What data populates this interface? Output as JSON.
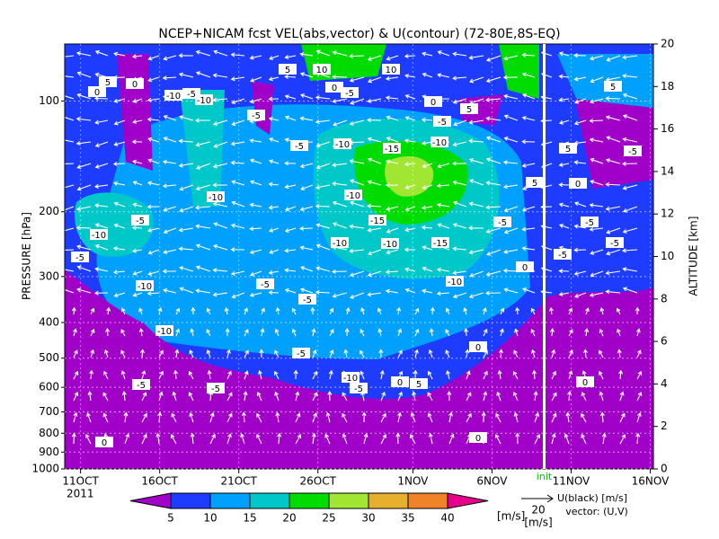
{
  "chart_data": {
    "type": "contour",
    "title": "NCEP+NICAM fcst VEL(abs,vector) & U(contour) (72-80E,8S-EQ)",
    "ylabel": "PRESSURE [hPa]",
    "y2label": "ALTITUDE [km]",
    "yscale": "log",
    "ylim": [
      1000,
      70
    ],
    "yticks": [
      100,
      200,
      300,
      400,
      500,
      600,
      700,
      800,
      900,
      1000
    ],
    "y2lim": [
      0,
      20
    ],
    "y2ticks": [
      0,
      2,
      4,
      6,
      8,
      10,
      12,
      14,
      16,
      18,
      20
    ],
    "xlim": [
      0,
      37.2
    ],
    "xticks": [
      {
        "value": 1,
        "label": "11OCT"
      },
      {
        "value": 6,
        "label": "16OCT"
      },
      {
        "value": 11,
        "label": "21OCT"
      },
      {
        "value": 16,
        "label": "26OCT"
      },
      {
        "value": 22,
        "label": "1NOV"
      },
      {
        "value": 27,
        "label": "6NOV"
      },
      {
        "value": 32,
        "label": "11NOV"
      },
      {
        "value": 37,
        "label": "16NOV"
      }
    ],
    "year_label": "2011",
    "grid": true,
    "init_line": {
      "value": 30.3,
      "label": "init"
    },
    "colorbar": {
      "levels": [
        5,
        10,
        15,
        20,
        25,
        30,
        35,
        40
      ],
      "colors": [
        "#a000c8",
        "#1e3cff",
        "#00a0ff",
        "#00c8c8",
        "#00dc00",
        "#a0e632",
        "#e6af2d",
        "#f08228",
        "#e6008c"
      ],
      "unit": "[m/s]"
    },
    "vector_reference": {
      "value": 20,
      "unit": "[m/s]"
    },
    "legend_text": [
      "U(black) [m/s]",
      "vector: (U,V)"
    ],
    "contour_labels": [
      5,
      0,
      0,
      -10,
      -5,
      -10,
      -5,
      5,
      10,
      0,
      -5,
      10,
      0,
      -5,
      5,
      -5,
      -10,
      -15,
      -10,
      -10,
      -10,
      -15,
      -5,
      -10,
      -5,
      -10,
      -10,
      -15,
      -5,
      5,
      0,
      -5,
      -5,
      -5,
      -10,
      -5,
      -5,
      -10,
      0,
      -10,
      -5,
      0,
      -5,
      -5,
      -10,
      -5,
      0,
      5,
      0,
      0,
      0,
      -5,
      5,
      5
    ]
  }
}
